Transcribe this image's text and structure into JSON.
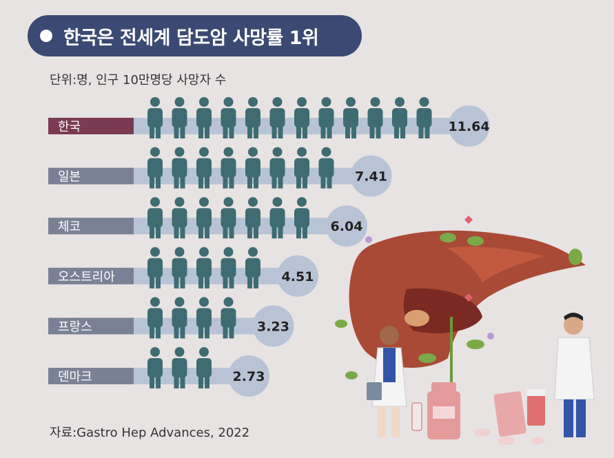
{
  "title": "한국은 전세계 담도암 사망률 1위",
  "unit_note": "단위:명, 인구 10만명당 사망자 수",
  "source": "자료:Gastro Hep Advances, 2022",
  "colors": {
    "title_bg": "#3a4a72",
    "highlight_label": "#7a3a52",
    "label": "#7b8195",
    "bar": "#b9c3d6",
    "icon": "#3e6c72",
    "value_circle": "#b9c3d6"
  },
  "illustration": {
    "subject": "liver-with-doctors",
    "icon": "liver-illustration-icon"
  },
  "chart_data": {
    "type": "bar",
    "categories": [
      "한국",
      "일본",
      "체코",
      "오스트리아",
      "프랑스",
      "덴마크"
    ],
    "values": [
      11.64,
      7.41,
      6.04,
      4.51,
      3.23,
      2.73
    ],
    "value_labels": [
      "11.64",
      "7.41",
      "6.04",
      "4.51",
      "3.23",
      "2.73"
    ],
    "icon_counts": [
      12,
      8,
      7,
      5,
      4,
      3
    ],
    "highlight_index": 0,
    "title": "한국은 전세계 담도암 사망률 1위",
    "xlabel": "",
    "ylabel": "단위:명, 인구 10만명당 사망자 수"
  }
}
